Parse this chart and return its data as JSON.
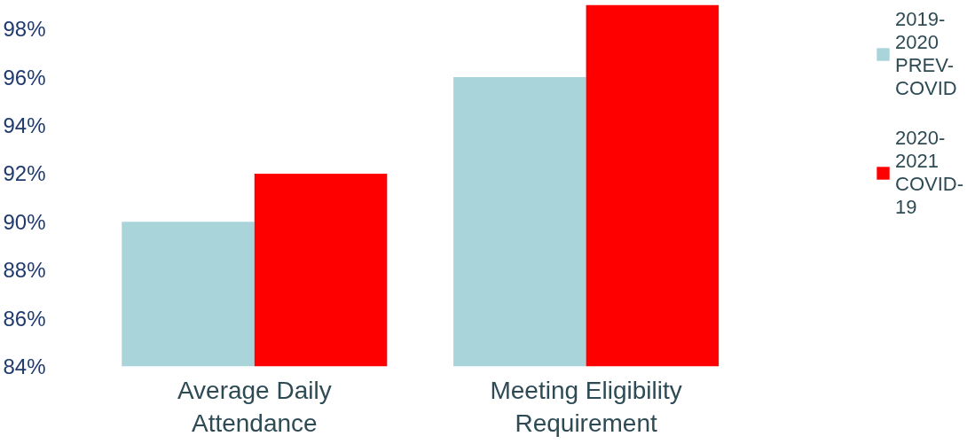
{
  "chart_data": {
    "type": "bar",
    "categories": [
      "Average Daily Attendance",
      "Meeting Eligibility Requirement"
    ],
    "series": [
      {
        "name": "2019-2020 PREV-COVID",
        "color": "#a9d4da",
        "values": [
          90,
          96
        ]
      },
      {
        "name": "2020-2021 COVID-19",
        "color": "#ff0000",
        "values": [
          92,
          99
        ]
      }
    ],
    "ylim": [
      84,
      99
    ],
    "yticks": [
      {
        "value": 84,
        "label": "84%"
      },
      {
        "value": 86,
        "label": "86%"
      },
      {
        "value": 88,
        "label": "88%"
      },
      {
        "value": 90,
        "label": "90%"
      },
      {
        "value": 92,
        "label": "92%"
      },
      {
        "value": 94,
        "label": "94%"
      },
      {
        "value": 96,
        "label": "96%"
      },
      {
        "value": 98,
        "label": "98%"
      }
    ],
    "grid": false,
    "legend": "top right"
  }
}
